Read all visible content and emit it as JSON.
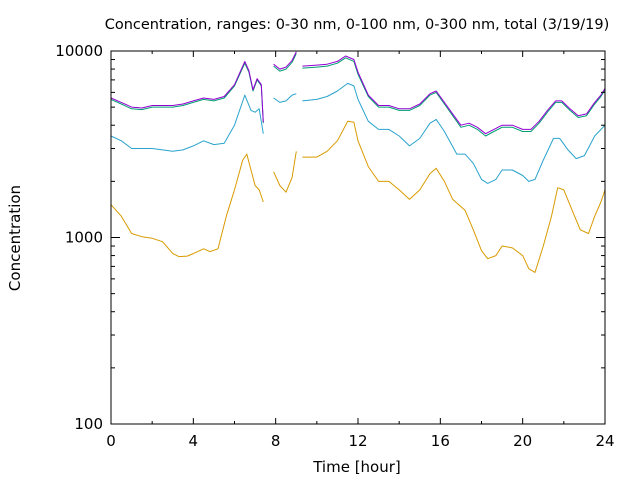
{
  "chart_data": {
    "type": "line",
    "title": "Concentration, ranges: 0-30 nm, 0-100 nm, 0-300 nm, total (3/19/19)",
    "xlabel": "Time [hour]",
    "ylabel": "Concentration",
    "xlim": [
      0,
      24
    ],
    "ylim": [
      100,
      10000
    ],
    "yscale": "log",
    "grid": false,
    "x_ticks": [
      0,
      4,
      8,
      12,
      16,
      20,
      24
    ],
    "x_tick_labels": [
      "0",
      "4",
      "8",
      "12",
      "16",
      "20",
      "24"
    ],
    "y_ticks": [
      100,
      1000,
      10000
    ],
    "y_tick_labels": [
      "100",
      "1000",
      "10000"
    ],
    "series": [
      {
        "color": "#d99a00",
        "segments": [
          [
            [
              0,
              1500
            ],
            [
              0.5,
              1300
            ],
            [
              1,
              1050
            ],
            [
              1.5,
              1010
            ],
            [
              2,
              990
            ],
            [
              2.5,
              950
            ],
            [
              3,
              820
            ],
            [
              3.3,
              790
            ],
            [
              3.7,
              795
            ],
            [
              4,
              820
            ],
            [
              4.5,
              870
            ],
            [
              4.8,
              840
            ],
            [
              5.2,
              870
            ],
            [
              5.6,
              1300
            ],
            [
              6,
              1800
            ],
            [
              6.4,
              2600
            ],
            [
              6.6,
              2800
            ],
            [
              6.8,
              2300
            ],
            [
              7,
              1900
            ],
            [
              7.2,
              1800
            ],
            [
              7.4,
              1550
            ]
          ],
          [
            [
              7.9,
              2250
            ],
            [
              8.2,
              1900
            ],
            [
              8.5,
              1750
            ],
            [
              8.8,
              2100
            ],
            [
              9,
              2900
            ]
          ],
          [
            [
              9.3,
              2700
            ],
            [
              10,
              2700
            ],
            [
              10.5,
              2900
            ],
            [
              11,
              3300
            ],
            [
              11.5,
              4200
            ],
            [
              11.8,
              4150
            ],
            [
              12,
              3300
            ],
            [
              12.5,
              2400
            ],
            [
              13,
              2000
            ],
            [
              13.5,
              2000
            ],
            [
              14,
              1800
            ],
            [
              14.5,
              1600
            ],
            [
              15,
              1800
            ],
            [
              15.5,
              2200
            ],
            [
              15.8,
              2350
            ],
            [
              16.2,
              2000
            ],
            [
              16.6,
              1600
            ],
            [
              17.2,
              1400
            ],
            [
              17.6,
              1100
            ],
            [
              18,
              850
            ],
            [
              18.3,
              770
            ],
            [
              18.7,
              800
            ],
            [
              19,
              900
            ],
            [
              19.5,
              880
            ],
            [
              20,
              800
            ],
            [
              20.3,
              680
            ],
            [
              20.6,
              650
            ],
            [
              21,
              900
            ],
            [
              21.4,
              1300
            ],
            [
              21.7,
              1850
            ],
            [
              22,
              1800
            ],
            [
              22.4,
              1400
            ],
            [
              22.8,
              1100
            ],
            [
              23.2,
              1050
            ],
            [
              23.5,
              1300
            ],
            [
              23.8,
              1550
            ],
            [
              24,
              1800
            ]
          ]
        ]
      },
      {
        "color": "#29a3cc",
        "segments": [
          [
            [
              0,
              3500
            ],
            [
              0.5,
              3300
            ],
            [
              1,
              3000
            ],
            [
              2,
              3000
            ],
            [
              3,
              2900
            ],
            [
              3.5,
              2950
            ],
            [
              4,
              3100
            ],
            [
              4.5,
              3300
            ],
            [
              5,
              3150
            ],
            [
              5.5,
              3200
            ],
            [
              6,
              4000
            ],
            [
              6.5,
              5800
            ],
            [
              6.8,
              4800
            ],
            [
              7,
              4700
            ],
            [
              7.2,
              4900
            ],
            [
              7.4,
              3600
            ]
          ],
          [
            [
              7.9,
              5600
            ],
            [
              8.2,
              5300
            ],
            [
              8.5,
              5400
            ],
            [
              8.8,
              5800
            ],
            [
              9,
              5900
            ]
          ],
          [
            [
              9.3,
              5400
            ],
            [
              10,
              5500
            ],
            [
              10.5,
              5700
            ],
            [
              11,
              6100
            ],
            [
              11.5,
              6700
            ],
            [
              11.8,
              6500
            ],
            [
              12,
              5500
            ],
            [
              12.5,
              4200
            ],
            [
              13,
              3800
            ],
            [
              13.5,
              3800
            ],
            [
              14,
              3500
            ],
            [
              14.5,
              3100
            ],
            [
              15,
              3400
            ],
            [
              15.5,
              4100
            ],
            [
              15.8,
              4300
            ],
            [
              16.2,
              3700
            ],
            [
              16.8,
              2800
            ],
            [
              17.2,
              2800
            ],
            [
              17.6,
              2500
            ],
            [
              18,
              2050
            ],
            [
              18.3,
              1950
            ],
            [
              18.7,
              2050
            ],
            [
              19,
              2300
            ],
            [
              19.5,
              2300
            ],
            [
              20,
              2150
            ],
            [
              20.3,
              2000
            ],
            [
              20.6,
              2050
            ],
            [
              21,
              2600
            ],
            [
              21.5,
              3400
            ],
            [
              21.8,
              3400
            ],
            [
              22.2,
              2950
            ],
            [
              22.6,
              2650
            ],
            [
              23,
              2750
            ],
            [
              23.5,
              3500
            ],
            [
              24,
              4000
            ]
          ]
        ]
      },
      {
        "color": "#009e73",
        "segments": [
          [
            [
              0,
              5500
            ],
            [
              0.5,
              5200
            ],
            [
              1,
              4900
            ],
            [
              1.5,
              4850
            ],
            [
              2,
              5000
            ],
            [
              3,
              5000
            ],
            [
              3.5,
              5100
            ],
            [
              4,
              5300
            ],
            [
              4.5,
              5500
            ],
            [
              5,
              5400
            ],
            [
              5.5,
              5600
            ],
            [
              6,
              6500
            ],
            [
              6.5,
              8600
            ],
            [
              6.7,
              7700
            ],
            [
              6.9,
              6100
            ],
            [
              7.1,
              7000
            ],
            [
              7.3,
              6500
            ],
            [
              7.4,
              4100
            ]
          ],
          [
            [
              7.9,
              8300
            ],
            [
              8.2,
              7800
            ],
            [
              8.5,
              8000
            ],
            [
              8.8,
              8700
            ],
            [
              9,
              9700
            ]
          ],
          [
            [
              9.3,
              8100
            ],
            [
              10,
              8200
            ],
            [
              10.5,
              8300
            ],
            [
              11,
              8600
            ],
            [
              11.4,
              9200
            ],
            [
              11.8,
              8800
            ],
            [
              12,
              7500
            ],
            [
              12.5,
              5700
            ],
            [
              13,
              5000
            ],
            [
              13.5,
              5000
            ],
            [
              14,
              4800
            ],
            [
              14.5,
              4800
            ],
            [
              15,
              5100
            ],
            [
              15.5,
              5800
            ],
            [
              15.8,
              6000
            ],
            [
              16.2,
              5200
            ],
            [
              16.6,
              4500
            ],
            [
              17,
              3900
            ],
            [
              17.4,
              4000
            ],
            [
              17.8,
              3800
            ],
            [
              18.2,
              3500
            ],
            [
              18.6,
              3700
            ],
            [
              19,
              3900
            ],
            [
              19.5,
              3900
            ],
            [
              20,
              3700
            ],
            [
              20.4,
              3700
            ],
            [
              20.8,
              4100
            ],
            [
              21.2,
              4700
            ],
            [
              21.6,
              5300
            ],
            [
              21.9,
              5300
            ],
            [
              22.3,
              4800
            ],
            [
              22.7,
              4400
            ],
            [
              23.1,
              4500
            ],
            [
              23.5,
              5200
            ],
            [
              23.8,
              5700
            ],
            [
              24,
              6200
            ]
          ]
        ]
      },
      {
        "color": "#9400d3",
        "segments": [
          [
            [
              0,
              5600
            ],
            [
              0.5,
              5300
            ],
            [
              1,
              5000
            ],
            [
              1.5,
              4950
            ],
            [
              2,
              5100
            ],
            [
              3,
              5100
            ],
            [
              3.5,
              5200
            ],
            [
              4,
              5400
            ],
            [
              4.5,
              5600
            ],
            [
              5,
              5500
            ],
            [
              5.5,
              5700
            ],
            [
              6,
              6600
            ],
            [
              6.5,
              8800
            ],
            [
              6.7,
              7850
            ],
            [
              6.9,
              6200
            ],
            [
              7.1,
              7100
            ],
            [
              7.3,
              6600
            ],
            [
              7.4,
              4150
            ]
          ],
          [
            [
              7.9,
              8500
            ],
            [
              8.2,
              8000
            ],
            [
              8.5,
              8200
            ],
            [
              8.8,
              8900
            ],
            [
              9,
              9900
            ]
          ],
          [
            [
              9.3,
              8300
            ],
            [
              10,
              8400
            ],
            [
              10.5,
              8500
            ],
            [
              11,
              8800
            ],
            [
              11.4,
              9400
            ],
            [
              11.8,
              9000
            ],
            [
              12,
              7700
            ],
            [
              12.5,
              5800
            ],
            [
              13,
              5100
            ],
            [
              13.5,
              5100
            ],
            [
              14,
              4900
            ],
            [
              14.5,
              4900
            ],
            [
              15,
              5200
            ],
            [
              15.5,
              5900
            ],
            [
              15.8,
              6100
            ],
            [
              16.2,
              5300
            ],
            [
              16.6,
              4600
            ],
            [
              17,
              4000
            ],
            [
              17.4,
              4100
            ],
            [
              17.8,
              3900
            ],
            [
              18.2,
              3600
            ],
            [
              18.6,
              3800
            ],
            [
              19,
              4000
            ],
            [
              19.5,
              4000
            ],
            [
              20,
              3800
            ],
            [
              20.4,
              3800
            ],
            [
              20.8,
              4200
            ],
            [
              21.2,
              4800
            ],
            [
              21.6,
              5400
            ],
            [
              21.9,
              5400
            ],
            [
              22.3,
              4900
            ],
            [
              22.7,
              4500
            ],
            [
              23.1,
              4600
            ],
            [
              23.5,
              5300
            ],
            [
              23.8,
              5800
            ],
            [
              24,
              6300
            ]
          ]
        ]
      }
    ]
  }
}
